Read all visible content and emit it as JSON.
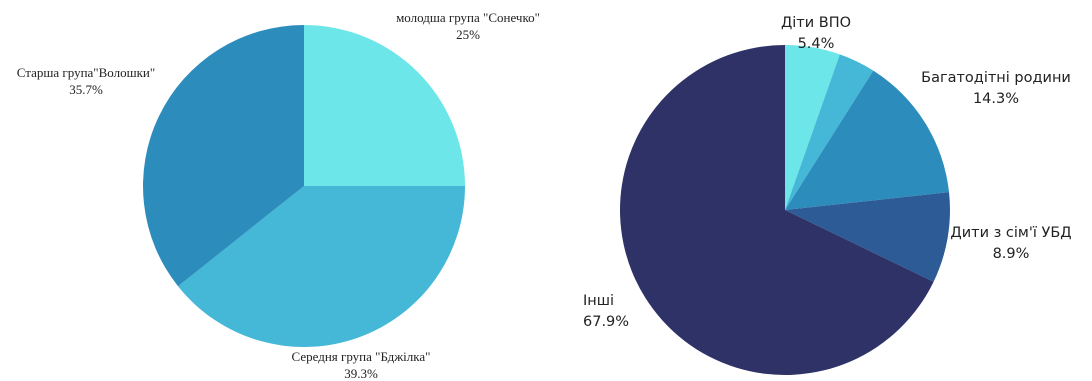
{
  "chart_data": [
    {
      "type": "pie",
      "title": "",
      "slices": [
        {
          "label": "молодша група \"Сонечко\"",
          "value": 25,
          "value_label": "25%",
          "color": "#6ce6e9"
        },
        {
          "label": "Середня група \"Бджілка\"",
          "value": 39.3,
          "value_label": "39.3%",
          "color": "#44b8d6"
        },
        {
          "label": "Старша група\"Волошки\"",
          "value": 35.7,
          "value_label": "35.7%",
          "color": "#2c8cbc"
        }
      ]
    },
    {
      "type": "pie",
      "title": "",
      "slices": [
        {
          "label": "Діти ВПО",
          "value": 5.4,
          "value_label": "5.4%",
          "color": "#6ce6e9"
        },
        {
          "label": "",
          "value": 3.6,
          "value_label": "",
          "color": "#44b8d6"
        },
        {
          "label": "Багатодітні родини",
          "value": 14.3,
          "value_label": "14.3%",
          "color": "#2c8cbc"
        },
        {
          "label": "Дити з сім'ї УБД",
          "value": 8.9,
          "value_label": "8.9%",
          "color": "#2c5b96"
        },
        {
          "label": "Інші",
          "value": 67.9,
          "value_label": "67.9%",
          "color": "#2f3266"
        }
      ]
    }
  ]
}
